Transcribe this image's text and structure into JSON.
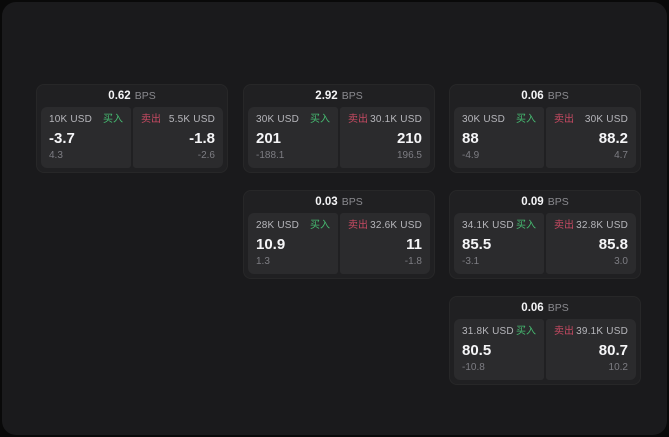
{
  "labels": {
    "bps_unit": "BPS",
    "buy": "买入",
    "sell": "卖出"
  },
  "colors": {
    "page_bg": "#090909",
    "window_bg": "#1a1a1c",
    "card_bg": "#202022",
    "panel_bg": "#2b2b2d",
    "text_bright": "#f5f5f7",
    "text_label": "#b6b6bb",
    "text_dim": "#7d7d83",
    "buy": "#46bb71",
    "sell": "#c64a62"
  },
  "cards": [
    {
      "bps": "0.62",
      "buy": {
        "size": "10K USD",
        "price": "-3.7",
        "delta": "4.3"
      },
      "sell": {
        "size": "5.5K USD",
        "price": "-1.8",
        "delta": "-2.6"
      }
    },
    {
      "bps": "2.92",
      "buy": {
        "size": "30K USD",
        "price": "201",
        "delta": "-188.1"
      },
      "sell": {
        "size": "30.1K USD",
        "price": "210",
        "delta": "196.5"
      }
    },
    {
      "bps": "0.06",
      "buy": {
        "size": "30K USD",
        "price": "88",
        "delta": "-4.9"
      },
      "sell": {
        "size": "30K USD",
        "price": "88.2",
        "delta": "4.7"
      }
    },
    {
      "bps": "0.03",
      "buy": {
        "size": "28K USD",
        "price": "10.9",
        "delta": "1.3"
      },
      "sell": {
        "size": "32.6K USD",
        "price": "11",
        "delta": "-1.8"
      }
    },
    {
      "bps": "0.09",
      "buy": {
        "size": "34.1K USD",
        "price": "85.5",
        "delta": "-3.1"
      },
      "sell": {
        "size": "32.8K USD",
        "price": "85.8",
        "delta": "3.0"
      }
    },
    {
      "bps": "0.06",
      "buy": {
        "size": "31.8K USD",
        "price": "80.5",
        "delta": "-10.8"
      },
      "sell": {
        "size": "39.1K USD",
        "price": "80.7",
        "delta": "10.2"
      }
    }
  ]
}
